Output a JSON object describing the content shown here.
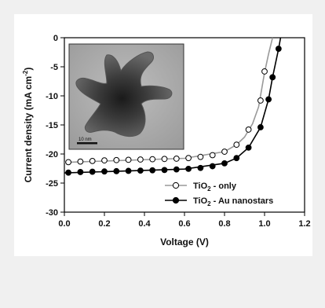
{
  "chart_data": {
    "type": "line",
    "xlabel": "Voltage (V)",
    "ylabel_parts": [
      "Current density (mA cm",
      "-2",
      ")"
    ],
    "xlim": [
      0,
      1.2
    ],
    "ylim": [
      -30,
      0
    ],
    "xticks": [
      "0.0",
      "0.2",
      "0.4",
      "0.6",
      "0.8",
      "1.0",
      "1.2"
    ],
    "xtick_values": [
      0.0,
      0.2,
      0.4,
      0.6,
      0.8,
      1.0,
      1.2
    ],
    "yticks": [
      "0",
      "-5",
      "-10",
      "-15",
      "-20",
      "-25",
      "-30"
    ],
    "ytick_values": [
      0,
      -5,
      -10,
      -15,
      -20,
      -25,
      -30
    ],
    "grid": false,
    "legend_position": "bottom-right",
    "series": [
      {
        "name_parts": [
          "TiO",
          "2",
          " - only"
        ],
        "marker": "open-circle",
        "color": "#999999",
        "points": [
          [
            0.02,
            -21.4
          ],
          [
            0.08,
            -21.3
          ],
          [
            0.14,
            -21.2
          ],
          [
            0.2,
            -21.1
          ],
          [
            0.26,
            -21.05
          ],
          [
            0.32,
            -21.0
          ],
          [
            0.38,
            -20.95
          ],
          [
            0.44,
            -20.9
          ],
          [
            0.5,
            -20.85
          ],
          [
            0.56,
            -20.8
          ],
          [
            0.62,
            -20.7
          ],
          [
            0.68,
            -20.5
          ],
          [
            0.74,
            -20.2
          ],
          [
            0.8,
            -19.6
          ],
          [
            0.86,
            -18.4
          ],
          [
            0.92,
            -15.8
          ],
          [
            0.98,
            -10.8
          ],
          [
            1.0,
            -5.8
          ]
        ],
        "curve": [
          [
            0.0,
            -21.45
          ],
          [
            0.6,
            -20.75
          ],
          [
            0.8,
            -19.6
          ],
          [
            0.86,
            -18.4
          ],
          [
            0.9,
            -17.1
          ],
          [
            0.94,
            -14.8
          ],
          [
            0.97,
            -11.9
          ],
          [
            1.0,
            -6.0
          ],
          [
            1.02,
            -2.8
          ],
          [
            1.04,
            0.0
          ]
        ]
      },
      {
        "name_parts": [
          "TiO",
          "2",
          " - Au nanostars"
        ],
        "marker": "filled-circle",
        "color": "#000000",
        "points": [
          [
            0.02,
            -23.2
          ],
          [
            0.08,
            -23.1
          ],
          [
            0.14,
            -23.05
          ],
          [
            0.2,
            -23.0
          ],
          [
            0.26,
            -22.95
          ],
          [
            0.32,
            -22.9
          ],
          [
            0.38,
            -22.85
          ],
          [
            0.44,
            -22.8
          ],
          [
            0.5,
            -22.75
          ],
          [
            0.56,
            -22.65
          ],
          [
            0.62,
            -22.55
          ],
          [
            0.68,
            -22.4
          ],
          [
            0.74,
            -22.1
          ],
          [
            0.8,
            -21.6
          ],
          [
            0.86,
            -20.7
          ],
          [
            0.92,
            -18.9
          ],
          [
            0.98,
            -15.4
          ],
          [
            1.02,
            -10.6
          ],
          [
            1.04,
            -6.8
          ],
          [
            1.07,
            -1.9
          ]
        ],
        "curve": [
          [
            0.0,
            -23.25
          ],
          [
            0.6,
            -22.6
          ],
          [
            0.8,
            -21.6
          ],
          [
            0.86,
            -20.7
          ],
          [
            0.92,
            -18.9
          ],
          [
            0.98,
            -15.4
          ],
          [
            1.02,
            -10.6
          ],
          [
            1.04,
            -6.8
          ],
          [
            1.07,
            -1.9
          ],
          [
            1.08,
            0.0
          ]
        ]
      }
    ],
    "inset": {
      "description_icon": "tem-micrograph-nanostar",
      "scalebar_label": "10 nm"
    }
  }
}
